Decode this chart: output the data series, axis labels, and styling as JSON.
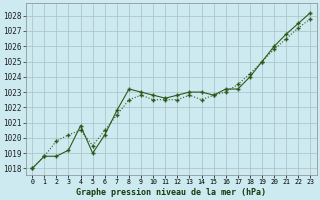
{
  "title": "Graphe pression niveau de la mer (hPa)",
  "bg_color": "#cceaf0",
  "grid_color": "#aabfc4",
  "line_color": "#2d5a1b",
  "yticks": [
    1018,
    1019,
    1020,
    1021,
    1022,
    1023,
    1024,
    1025,
    1026,
    1027,
    1028
  ],
  "ylim": [
    1017.6,
    1028.8
  ],
  "xlim": [
    -0.5,
    23.5
  ],
  "s1": [
    1018.0,
    1018.8,
    1018.8,
    1019.2,
    1020.8,
    1019.0,
    1020.2,
    1021.8,
    1023.2,
    1023.0,
    1022.8,
    1022.6,
    1022.8,
    1023.0,
    1023.0,
    1022.8,
    1023.2,
    1023.2,
    1024.0,
    1025.0,
    1026.0,
    1026.8,
    1027.5,
    1028.2
  ],
  "s2": [
    1018.0,
    1018.8,
    1019.8,
    1020.2,
    1020.5,
    1019.5,
    1020.5,
    1021.5,
    1022.5,
    1022.8,
    1022.5,
    1022.5,
    1022.5,
    1022.8,
    1022.5,
    1022.8,
    1023.0,
    1023.5,
    1024.2,
    1025.0,
    1025.8,
    1026.5,
    1027.2,
    1027.8
  ],
  "x_labels": [
    "0",
    "1",
    "2",
    "3",
    "4",
    "5",
    "6",
    "7",
    "8",
    "9",
    "10",
    "11",
    "12",
    "13",
    "14",
    "15",
    "16",
    "17",
    "18",
    "19",
    "20",
    "21",
    "22",
    "23"
  ]
}
